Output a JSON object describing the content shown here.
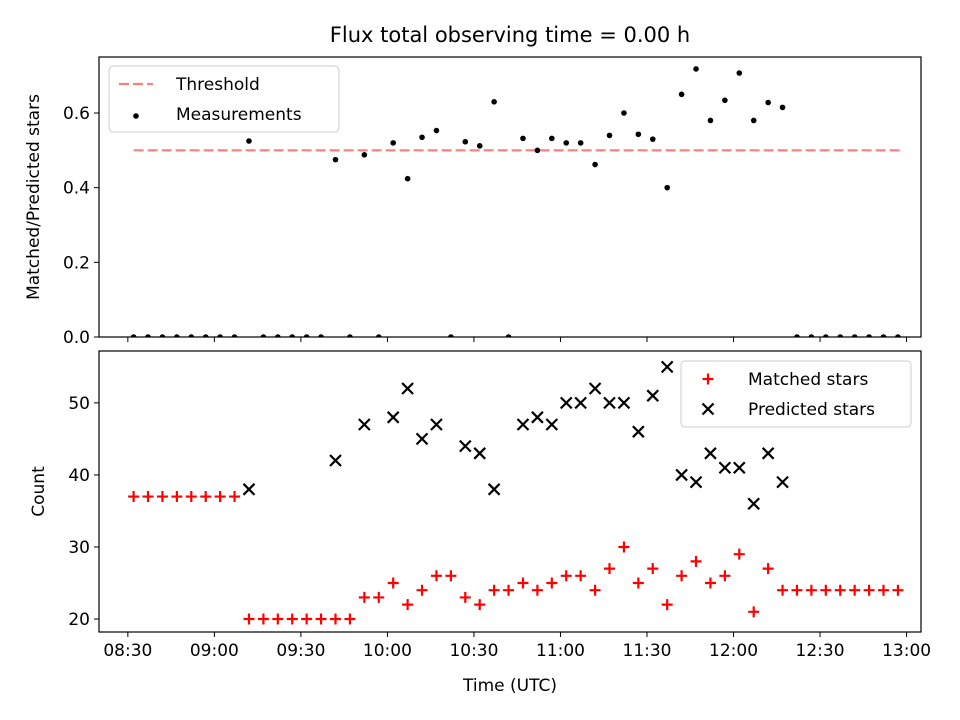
{
  "title": "Flux total observing time = 0.00 h",
  "xlabel": "Time (UTC)",
  "colors": {
    "threshold": "#ff7f7f",
    "measurement": "#000000",
    "matched": "#ff0000",
    "predicted": "#000000"
  },
  "chart_data": [
    {
      "type": "scatter",
      "ylabel": "Matched/Predicted stars",
      "xlim": [
        "08:20",
        "13:05"
      ],
      "ylim": [
        0,
        0.75
      ],
      "yticks": [
        "0.0",
        "0.2",
        "0.4",
        "0.6"
      ],
      "legend_position": "top-left",
      "threshold": {
        "label": "Threshold",
        "value": 0.5,
        "x_range": [
          "08:32",
          "12:58"
        ]
      },
      "series": [
        {
          "name": "Measurements",
          "points": [
            [
              "08:32",
              0
            ],
            [
              "08:37",
              0
            ],
            [
              "08:42",
              0
            ],
            [
              "08:47",
              0
            ],
            [
              "08:52",
              0
            ],
            [
              "08:57",
              0
            ],
            [
              "09:02",
              0
            ],
            [
              "09:07",
              0
            ],
            [
              "09:12",
              0.525
            ],
            [
              "09:17",
              0
            ],
            [
              "09:22",
              0
            ],
            [
              "09:27",
              0
            ],
            [
              "09:32",
              0
            ],
            [
              "09:37",
              0
            ],
            [
              "09:42",
              0.475
            ],
            [
              "09:47",
              0
            ],
            [
              "09:52",
              0.488
            ],
            [
              "09:57",
              0
            ],
            [
              "10:02",
              0.52
            ],
            [
              "10:07",
              0.424
            ],
            [
              "10:12",
              0.535
            ],
            [
              "10:17",
              0.553
            ],
            [
              "10:22",
              0
            ],
            [
              "10:27",
              0.523
            ],
            [
              "10:32",
              0.512
            ],
            [
              "10:37",
              0.63
            ],
            [
              "10:42",
              0
            ],
            [
              "10:47",
              0.532
            ],
            [
              "10:52",
              0.5
            ],
            [
              "10:57",
              0.532
            ],
            [
              "11:02",
              0.52
            ],
            [
              "11:07",
              0.52
            ],
            [
              "11:12",
              0.462
            ],
            [
              "11:17",
              0.54
            ],
            [
              "11:22",
              0.6
            ],
            [
              "11:27",
              0.543
            ],
            [
              "11:32",
              0.53
            ],
            [
              "11:37",
              0.4
            ],
            [
              "11:42",
              0.65
            ],
            [
              "11:47",
              0.718
            ],
            [
              "11:52",
              0.58
            ],
            [
              "11:57",
              0.634
            ],
            [
              "12:02",
              0.707
            ],
            [
              "12:07",
              0.58
            ],
            [
              "12:12",
              0.628
            ],
            [
              "12:17",
              0.615
            ],
            [
              "12:22",
              0
            ],
            [
              "12:27",
              0
            ],
            [
              "12:32",
              0
            ],
            [
              "12:37",
              0
            ],
            [
              "12:42",
              0
            ],
            [
              "12:47",
              0
            ],
            [
              "12:52",
              0
            ],
            [
              "12:57",
              0
            ]
          ]
        }
      ]
    },
    {
      "type": "scatter",
      "ylabel": "Count",
      "xlim": [
        "08:20",
        "13:05"
      ],
      "ylim": [
        18.2,
        57.2
      ],
      "yticks": [
        "20",
        "30",
        "40",
        "50"
      ],
      "xticks": [
        "08:30",
        "09:00",
        "09:30",
        "10:00",
        "10:30",
        "11:00",
        "11:30",
        "12:00",
        "12:30",
        "13:00"
      ],
      "legend_position": "top-right",
      "series": [
        {
          "name": "Matched stars",
          "marker": "plus",
          "points": [
            [
              "08:32",
              37
            ],
            [
              "08:37",
              37
            ],
            [
              "08:42",
              37
            ],
            [
              "08:47",
              37
            ],
            [
              "08:52",
              37
            ],
            [
              "08:57",
              37
            ],
            [
              "09:02",
              37
            ],
            [
              "09:07",
              37
            ],
            [
              "09:12",
              20
            ],
            [
              "09:17",
              20
            ],
            [
              "09:22",
              20
            ],
            [
              "09:27",
              20
            ],
            [
              "09:32",
              20
            ],
            [
              "09:37",
              20
            ],
            [
              "09:42",
              20
            ],
            [
              "09:47",
              20
            ],
            [
              "09:52",
              23
            ],
            [
              "09:57",
              23
            ],
            [
              "10:02",
              25
            ],
            [
              "10:07",
              22
            ],
            [
              "10:12",
              24
            ],
            [
              "10:17",
              26
            ],
            [
              "10:22",
              26
            ],
            [
              "10:27",
              23
            ],
            [
              "10:32",
              22
            ],
            [
              "10:37",
              24
            ],
            [
              "10:42",
              24
            ],
            [
              "10:47",
              25
            ],
            [
              "10:52",
              24
            ],
            [
              "10:57",
              25
            ],
            [
              "11:02",
              26
            ],
            [
              "11:07",
              26
            ],
            [
              "11:12",
              24
            ],
            [
              "11:17",
              27
            ],
            [
              "11:22",
              30
            ],
            [
              "11:27",
              25
            ],
            [
              "11:32",
              27
            ],
            [
              "11:37",
              22
            ],
            [
              "11:42",
              26
            ],
            [
              "11:47",
              28
            ],
            [
              "11:52",
              25
            ],
            [
              "11:57",
              26
            ],
            [
              "12:02",
              29
            ],
            [
              "12:07",
              21
            ],
            [
              "12:12",
              27
            ],
            [
              "12:17",
              24
            ],
            [
              "12:22",
              24
            ],
            [
              "12:27",
              24
            ],
            [
              "12:32",
              24
            ],
            [
              "12:37",
              24
            ],
            [
              "12:42",
              24
            ],
            [
              "12:47",
              24
            ],
            [
              "12:52",
              24
            ],
            [
              "12:57",
              24
            ]
          ]
        },
        {
          "name": "Predicted stars",
          "marker": "cross",
          "points": [
            [
              "09:12",
              38
            ],
            [
              "09:42",
              42
            ],
            [
              "09:52",
              47
            ],
            [
              "10:02",
              48
            ],
            [
              "10:07",
              52
            ],
            [
              "10:12",
              45
            ],
            [
              "10:17",
              47
            ],
            [
              "10:27",
              44
            ],
            [
              "10:32",
              43
            ],
            [
              "10:37",
              38
            ],
            [
              "10:47",
              47
            ],
            [
              "10:52",
              48
            ],
            [
              "10:57",
              47
            ],
            [
              "11:02",
              50
            ],
            [
              "11:07",
              50
            ],
            [
              "11:12",
              52
            ],
            [
              "11:17",
              50
            ],
            [
              "11:22",
              50
            ],
            [
              "11:27",
              46
            ],
            [
              "11:32",
              51
            ],
            [
              "11:37",
              55
            ],
            [
              "11:42",
              40
            ],
            [
              "11:47",
              39
            ],
            [
              "11:52",
              43
            ],
            [
              "11:57",
              41
            ],
            [
              "12:02",
              41
            ],
            [
              "12:07",
              36
            ],
            [
              "12:12",
              43
            ],
            [
              "12:17",
              39
            ]
          ]
        }
      ]
    }
  ]
}
